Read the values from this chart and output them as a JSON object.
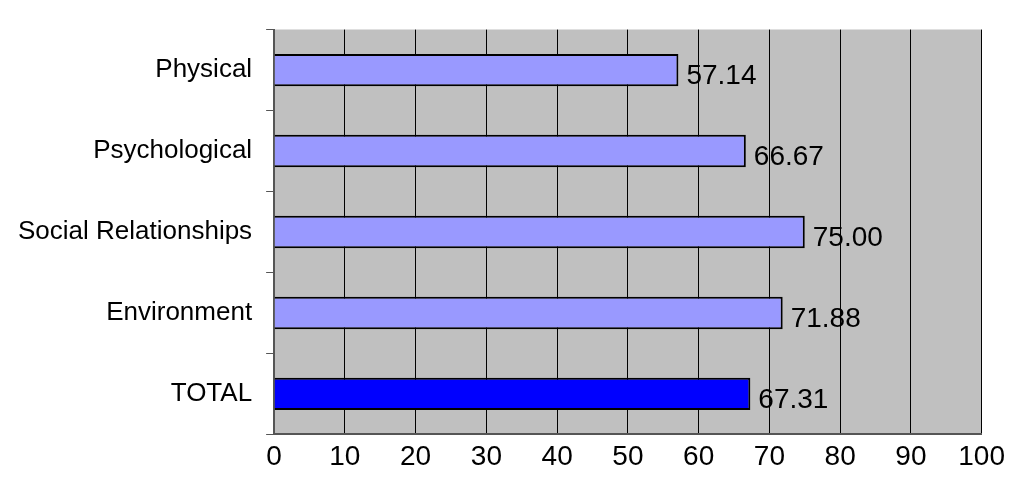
{
  "chart_data": {
    "type": "bar",
    "orientation": "horizontal",
    "categories": [
      "Physical",
      "Psychological",
      "Social Relationships",
      "Environment",
      "TOTAL"
    ],
    "values": [
      57.14,
      66.67,
      75.0,
      71.88,
      67.31
    ],
    "colors": [
      "#9999ff",
      "#9999ff",
      "#9999ff",
      "#9999ff",
      "#0000ff"
    ],
    "value_labels": [
      "57.14",
      "66.67",
      "75.00",
      "71.88",
      "67.31"
    ],
    "xlim": [
      0,
      100
    ],
    "xticks": [
      0,
      10,
      20,
      30,
      40,
      50,
      60,
      70,
      80,
      90,
      100
    ],
    "grid": "x",
    "legend": false
  }
}
